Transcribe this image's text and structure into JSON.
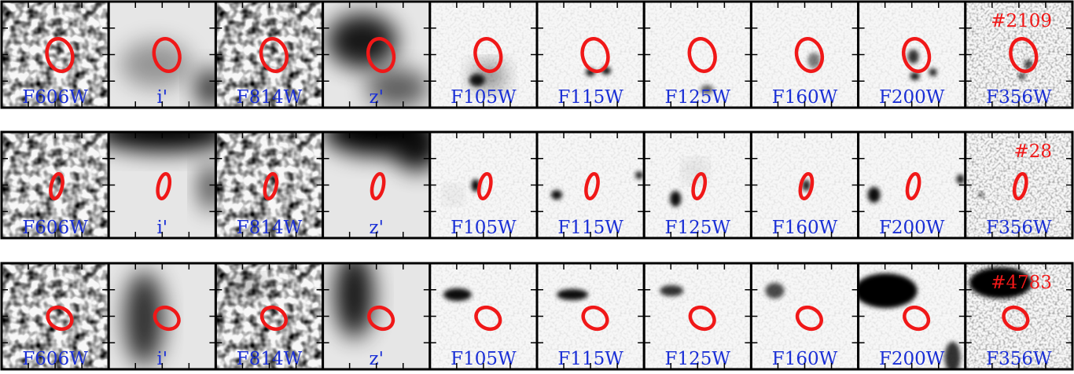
{
  "rows": [
    {
      "id": "#2109",
      "filters": [
        "F606W",
        "i'",
        "F814W",
        "z'",
        "F105W",
        "F115W",
        "F125W",
        "F160W",
        "F200W",
        "F356W"
      ]
    },
    {
      "id": "#28",
      "filters": [
        "F606W",
        "i'",
        "F814W",
        "z'",
        "F105W",
        "F115W",
        "F125W",
        "F160W",
        "F200W",
        "F356W"
      ]
    },
    {
      "id": "#4783",
      "filters": [
        "F606W",
        "i'",
        "F814W",
        "z'",
        "F105W",
        "F115W",
        "F125W",
        "F160W",
        "F200W",
        "F356W"
      ]
    }
  ]
}
